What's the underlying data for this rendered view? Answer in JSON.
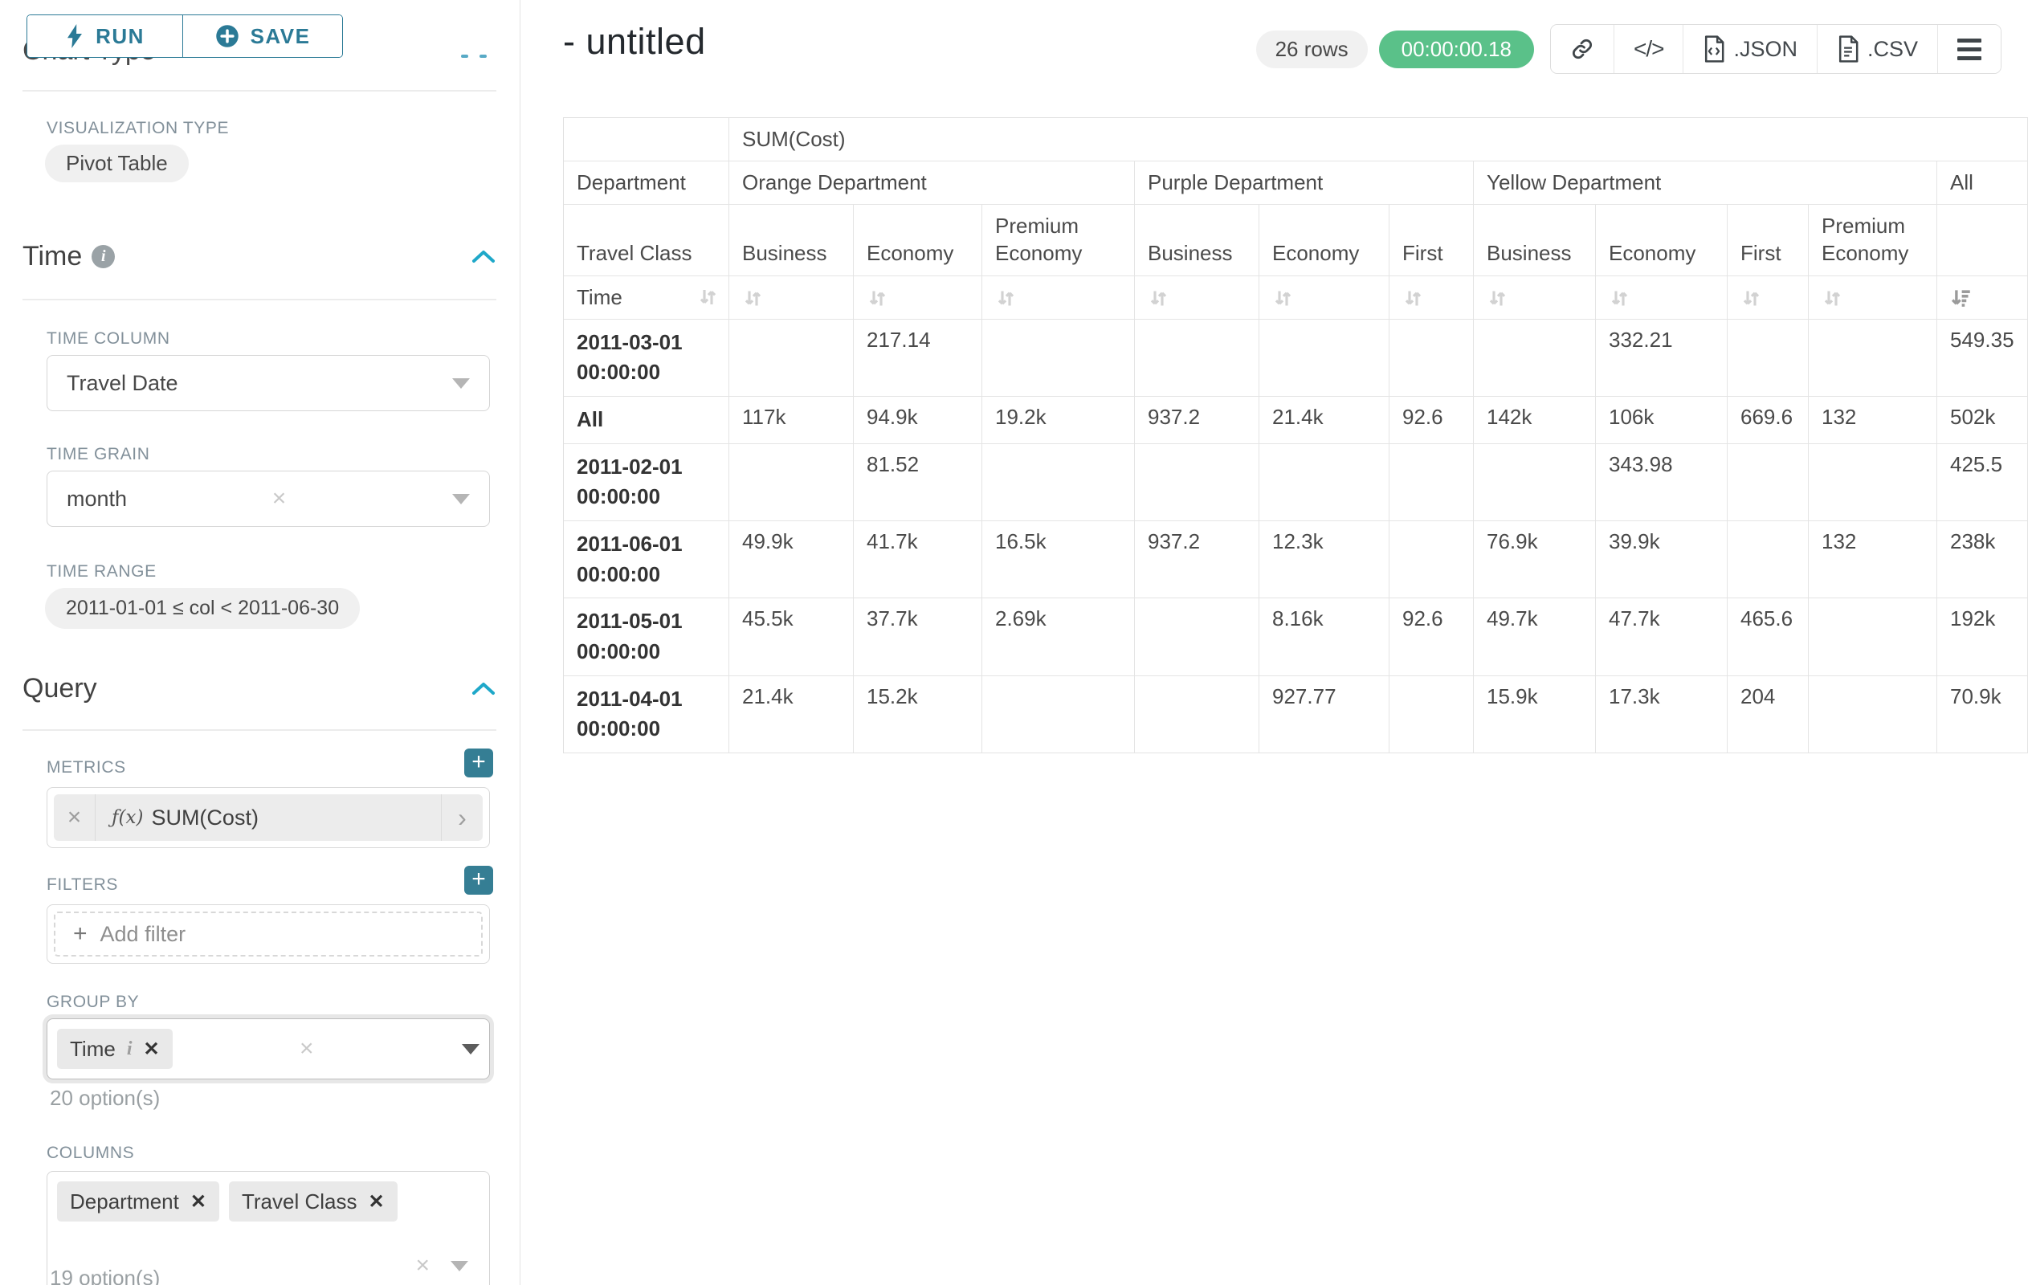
{
  "colors": {
    "accent_teal": "#2b7a96",
    "chevron_blue": "#1fa8c9",
    "success_green": "#5ac189",
    "pill_grey": "#f0f0f0"
  },
  "sidebar": {
    "run_button": {
      "label": "RUN"
    },
    "save_button": {
      "label": "SAVE"
    },
    "chart_type": {
      "heading": "Chart Type",
      "viz_type_label": "VISUALIZATION TYPE",
      "viz_type_value": "Pivot Table"
    },
    "time_section": {
      "heading": "Time",
      "time_column": {
        "label": "TIME COLUMN",
        "value": "Travel Date"
      },
      "time_grain": {
        "label": "TIME GRAIN",
        "value": "month"
      },
      "time_range": {
        "label": "TIME RANGE",
        "value": "2011-01-01 ≤ col < 2011-06-30"
      }
    },
    "query_section": {
      "heading": "Query",
      "metrics": {
        "label": "METRICS",
        "fx": "ƒ(x)",
        "metric_name": "SUM(Cost)"
      },
      "filters": {
        "label": "FILTERS",
        "placeholder": "Add filter"
      },
      "group_by": {
        "label": "GROUP BY",
        "tags": [
          "Time"
        ],
        "options_hint": "20 option(s)"
      },
      "columns": {
        "label": "COLUMNS",
        "tags": [
          "Department",
          "Travel Class"
        ],
        "options_hint": "19 option(s)"
      }
    }
  },
  "main": {
    "title": "- untitled",
    "rows_badge": "26 rows",
    "timer_badge": "00:00:00.18",
    "toolbar": [
      {
        "name": "share-link",
        "label": ""
      },
      {
        "name": "embed-code",
        "label": ""
      },
      {
        "name": "export-json",
        "label": ".JSON"
      },
      {
        "name": "export-csv",
        "label": ".CSV"
      },
      {
        "name": "menu",
        "label": ""
      }
    ]
  },
  "chart_data": {
    "type": "table",
    "title": "SUM(Cost)",
    "axis_labels": {
      "department": "Department",
      "travel_class": "Travel Class",
      "time": "Time"
    },
    "column_groups": [
      {
        "label": "Orange Department",
        "span": 3
      },
      {
        "label": "Purple Department",
        "span": 3
      },
      {
        "label": "Yellow Department",
        "span": 4
      },
      {
        "label": "All",
        "span": 1
      }
    ],
    "columns": [
      "Business",
      "Economy",
      "Premium Economy",
      "Business",
      "Economy",
      "First",
      "Business",
      "Economy",
      "First",
      "Premium Economy",
      ""
    ],
    "sort_state": {
      "sorted_column_index": 10,
      "direction": "desc"
    },
    "rows": [
      {
        "label": "2011-03-01 00:00:00",
        "values": [
          "",
          "217.14",
          "",
          "",
          "",
          "",
          "",
          "332.21",
          "",
          "",
          "549.35"
        ]
      },
      {
        "label": "All",
        "values": [
          "117k",
          "94.9k",
          "19.2k",
          "937.2",
          "21.4k",
          "92.6",
          "142k",
          "106k",
          "669.6",
          "132",
          "502k"
        ]
      },
      {
        "label": "2011-02-01 00:00:00",
        "values": [
          "",
          "81.52",
          "",
          "",
          "",
          "",
          "",
          "343.98",
          "",
          "",
          "425.5"
        ]
      },
      {
        "label": "2011-06-01 00:00:00",
        "values": [
          "49.9k",
          "41.7k",
          "16.5k",
          "937.2",
          "12.3k",
          "",
          "76.9k",
          "39.9k",
          "",
          "132",
          "238k"
        ]
      },
      {
        "label": "2011-05-01 00:00:00",
        "values": [
          "45.5k",
          "37.7k",
          "2.69k",
          "",
          "8.16k",
          "92.6",
          "49.7k",
          "47.7k",
          "465.6",
          "",
          "192k"
        ]
      },
      {
        "label": "2011-04-01 00:00:00",
        "values": [
          "21.4k",
          "15.2k",
          "",
          "",
          "927.77",
          "",
          "15.9k",
          "17.3k",
          "204",
          "",
          "70.9k"
        ]
      }
    ]
  }
}
